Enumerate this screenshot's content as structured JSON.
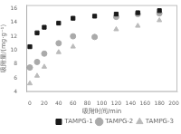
{
  "chart_data": {
    "type": "scatter",
    "xlabel": "吸附时间/min",
    "ylabel": "吸附量/(mg·g⁻¹)",
    "x": [
      0,
      10,
      20,
      40,
      60,
      90,
      120,
      150,
      180
    ],
    "series": [
      {
        "name": "TAMPG-1",
        "color": "#1a1a1a",
        "marker": "square",
        "values": [
          10.5,
          12.5,
          13.3,
          13.9,
          14.6,
          14.9,
          15.2,
          15.4,
          15.7
        ]
      },
      {
        "name": "TAMPG-2",
        "color": "#aaaaaa",
        "marker": "circle",
        "values": [
          7.5,
          8.3,
          9.5,
          11.0,
          12.0,
          11.9,
          14.8,
          15.2,
          15.3
        ]
      },
      {
        "name": "TAMPG-3",
        "color": "#bbbbbb",
        "marker": "triangle",
        "values": [
          5.2,
          6.3,
          7.6,
          9.7,
          10.5,
          11.9,
          13.0,
          13.5,
          14.3
        ]
      }
    ],
    "xlim": [
      -5,
      205
    ],
    "ylim": [
      4,
      16.5
    ],
    "xticks": [
      0,
      20,
      40,
      60,
      80,
      100,
      120,
      140,
      160,
      180,
      200
    ],
    "yticks": [
      4,
      6,
      8,
      10,
      12,
      14,
      16
    ],
    "grid": false,
    "legend": "lower right"
  }
}
